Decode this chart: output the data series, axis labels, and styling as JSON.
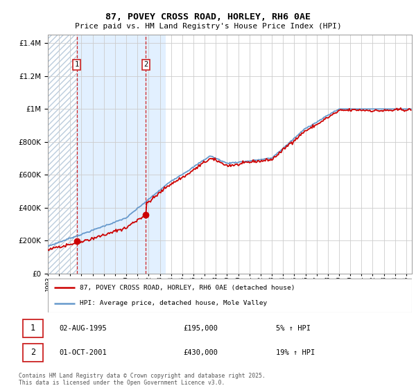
{
  "title_line1": "87, POVEY CROSS ROAD, HORLEY, RH6 0AE",
  "title_line2": "Price paid vs. HM Land Registry's House Price Index (HPI)",
  "legend_label_red": "87, POVEY CROSS ROAD, HORLEY, RH6 0AE (detached house)",
  "legend_label_blue": "HPI: Average price, detached house, Mole Valley",
  "purchase1_date": "02-AUG-1995",
  "purchase1_price": "£195,000",
  "purchase1_hpi": "5% ↑ HPI",
  "purchase2_date": "01-OCT-2001",
  "purchase2_price": "£430,000",
  "purchase2_hpi": "19% ↑ HPI",
  "purchase1_year": 1995.58,
  "purchase1_value": 195000,
  "purchase2_year": 2001.75,
  "purchase2_value": 430000,
  "year_start": 1993,
  "year_end": 2025,
  "ymax": 1450000,
  "red_color": "#cc0000",
  "blue_color": "#6699cc",
  "hatch_color": "#bbccdd",
  "bg_plot_color": "#ddeeff",
  "grid_color": "#cccccc",
  "dashed_color": "#cc0000",
  "hatch_xend": 1995.58,
  "blue_shade_xstart": 1995.58,
  "blue_shade_xend": 2003.5,
  "footer": "Contains HM Land Registry data © Crown copyright and database right 2025.\nThis data is licensed under the Open Government Licence v3.0."
}
